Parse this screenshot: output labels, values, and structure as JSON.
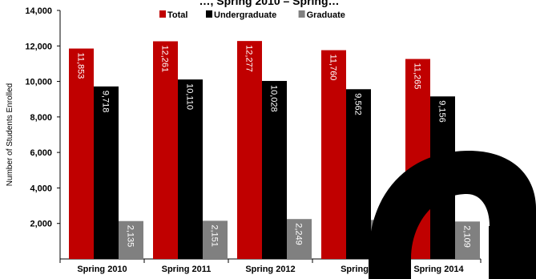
{
  "chart_data": {
    "type": "bar",
    "title": "…, Spring 2010 – Spring…",
    "ylabel": "Number of Students Enrolled",
    "xlabel": "",
    "ylim": [
      0,
      14000
    ],
    "yticks": [
      2000,
      4000,
      6000,
      8000,
      10000,
      12000,
      14000
    ],
    "ytick_labels": [
      "2,000",
      "4,000",
      "6,000",
      "8,000",
      "10,000",
      "12,000",
      "14,000"
    ],
    "categories": [
      "Spring 2010",
      "Spring 2011",
      "Spring 2012",
      "Spring 2013",
      "Spring 2014"
    ],
    "category_labels": [
      "Spring 2010",
      "Spring 2011",
      "Spring 2012",
      "Spring",
      "Spring 2014"
    ],
    "grid": false,
    "legend_position": "top-center",
    "series": [
      {
        "name": "Total",
        "color": "#c00000",
        "values": [
          11853,
          12261,
          12277,
          11760,
          11265
        ],
        "labels": [
          "11,853",
          "12,261",
          "12,277",
          "11,760",
          "11,265"
        ]
      },
      {
        "name": "Undergraduate",
        "color": "#000000",
        "values": [
          9718,
          10110,
          10028,
          9562,
          9156
        ],
        "labels": [
          "9,718",
          "10,110",
          "10,028",
          "9,562",
          "9,156"
        ]
      },
      {
        "name": "Graduate",
        "color": "#808080",
        "values": [
          2135,
          2151,
          2249,
          2198,
          2109
        ],
        "labels": [
          "2,135",
          "2,151",
          "2,249",
          "",
          "2,109"
        ]
      }
    ]
  }
}
